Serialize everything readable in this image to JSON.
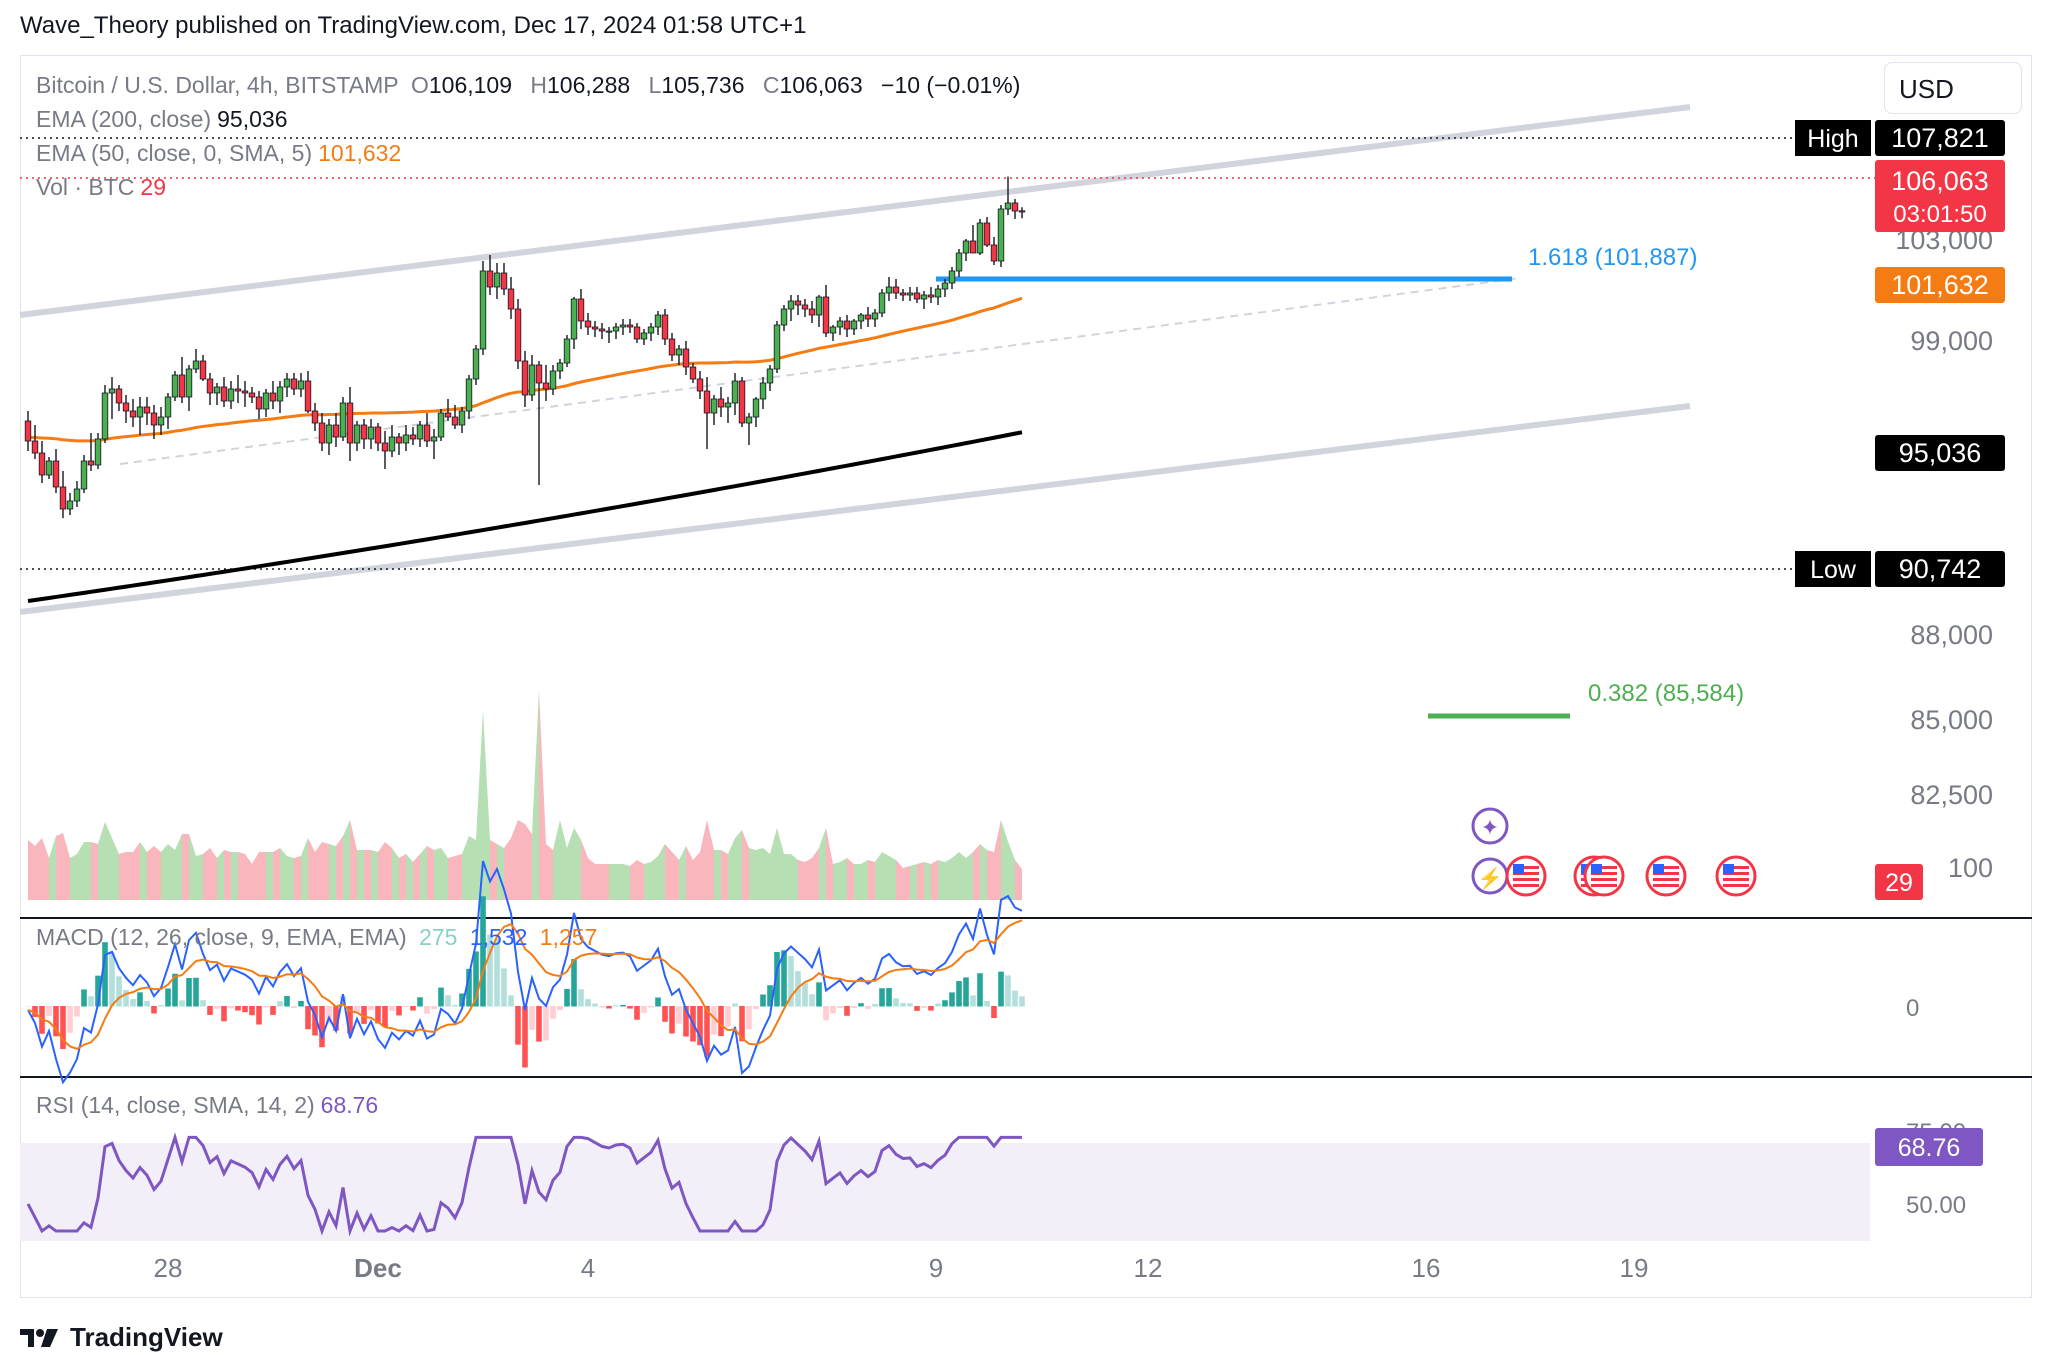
{
  "header": {
    "text": "Wave_Theory published on TradingView.com, Dec 17, 2024 01:58 UTC+1"
  },
  "currency": "USD",
  "legend": {
    "symbol": "Bitcoin / U.S. Dollar, 4h, BITSTAMP",
    "o_label": "O",
    "o": "106,109",
    "h_label": "H",
    "h": "106,288",
    "l_label": "L",
    "l": "105,736",
    "c_label": "C",
    "c": "106,063",
    "change": "−10 (−0.01%)",
    "ema200": "EMA (200, close)",
    "ema200_val": "95,036",
    "ema50": "EMA (50, close, 0, SMA, 5)",
    "ema50_val": "101,632",
    "vol": "Vol · BTC",
    "vol_val": "29",
    "macd": "MACD (12, 26, close, 9, EMA, EMA)",
    "macd_hist": "275",
    "macd_line": "1,532",
    "macd_signal": "1,257",
    "rsi": "RSI (14, close, SMA, 14, 2)",
    "rsi_val": "68.76"
  },
  "footer": {
    "brand": "TradingView"
  },
  "chart_data": {
    "type": "candlestick",
    "interval": "4h",
    "y_ticks": [
      "103,000",
      "99,000",
      "88,000",
      "85,000",
      "82,500",
      "100"
    ],
    "x_ticks": [
      "28",
      "Dec",
      "4",
      "9",
      "12",
      "16",
      "19"
    ],
    "price_markers": [
      {
        "label": "High",
        "value": "107,821",
        "color": "#000000"
      },
      {
        "label": "",
        "value": "106,063",
        "sub": "03:01:50",
        "color": "#f23645"
      },
      {
        "label": "",
        "value": "101,632",
        "color": "#f57c12"
      },
      {
        "label": "",
        "value": "95,036",
        "color": "#000000"
      },
      {
        "label": "Low",
        "value": "90,742",
        "color": "#000000"
      }
    ],
    "annotations": [
      {
        "text": "1.618 (101,887)",
        "color": "#2196f3"
      },
      {
        "text": "0.382 (85,584)",
        "color": "#4caf50"
      }
    ],
    "volume_marker": "29",
    "macd_axis": [
      "0"
    ],
    "rsi_axis": [
      "75.00",
      "50.00"
    ],
    "rsi_marker": "68.76",
    "candles_ohlc": [
      [
        95600,
        96100,
        94100,
        94600
      ],
      [
        94600,
        95400,
        93700,
        94000
      ],
      [
        94000,
        94600,
        92500,
        92900
      ],
      [
        92900,
        93800,
        92700,
        93600
      ],
      [
        93600,
        94200,
        92000,
        92300
      ],
      [
        92300,
        93100,
        90742,
        91200
      ],
      [
        91200,
        92000,
        90900,
        91600
      ],
      [
        91600,
        92600,
        91300,
        92200
      ],
      [
        92200,
        93900,
        92000,
        93600
      ],
      [
        93600,
        95000,
        93100,
        93400
      ],
      [
        93400,
        95000,
        93200,
        94700
      ],
      [
        94700,
        97400,
        94500,
        97000
      ],
      [
        97000,
        97800,
        95700,
        97200
      ],
      [
        97200,
        97400,
        96100,
        96500
      ],
      [
        96500,
        96900,
        95500,
        96100
      ],
      [
        96100,
        96700,
        95300,
        95800
      ],
      [
        95800,
        96800,
        94900,
        96300
      ],
      [
        96300,
        96800,
        95400,
        96000
      ],
      [
        96000,
        96400,
        94700,
        95400
      ],
      [
        95400,
        96300,
        94900,
        95800
      ],
      [
        95800,
        97000,
        95200,
        96800
      ],
      [
        96800,
        98100,
        96600,
        97900
      ],
      [
        97900,
        98800,
        96500,
        96800
      ],
      [
        96800,
        98400,
        96100,
        98200
      ],
      [
        98200,
        99200,
        98000,
        98600
      ],
      [
        98600,
        98900,
        97600,
        97700
      ],
      [
        97700,
        98000,
        96400,
        97000
      ],
      [
        97000,
        97500,
        96400,
        97300
      ],
      [
        97300,
        97800,
        96300,
        96600
      ],
      [
        96600,
        97600,
        96200,
        97200
      ],
      [
        97200,
        97900,
        96500,
        97100
      ],
      [
        97100,
        97600,
        96300,
        97000
      ],
      [
        97000,
        97300,
        96500,
        96800
      ],
      [
        96800,
        97100,
        95700,
        96200
      ],
      [
        96200,
        97200,
        95800,
        97000
      ],
      [
        97000,
        97600,
        96200,
        96600
      ],
      [
        96600,
        97600,
        96000,
        97300
      ],
      [
        97300,
        98000,
        96800,
        97700
      ],
      [
        97700,
        98000,
        96900,
        97200
      ],
      [
        97200,
        98000,
        96800,
        97600
      ],
      [
        97600,
        98100,
        96000,
        96100
      ],
      [
        96100,
        96500,
        95100,
        95500
      ],
      [
        95500,
        96000,
        94100,
        94500
      ],
      [
        94500,
        95700,
        93900,
        95400
      ],
      [
        95400,
        96000,
        94300,
        94800
      ],
      [
        94800,
        96800,
        94600,
        96500
      ],
      [
        96500,
        97300,
        93600,
        94500
      ],
      [
        94500,
        95600,
        94100,
        95400
      ],
      [
        95400,
        95700,
        94200,
        94700
      ],
      [
        94700,
        95700,
        94200,
        95300
      ],
      [
        95300,
        95500,
        94100,
        94500
      ],
      [
        94500,
        95100,
        93200,
        94100
      ],
      [
        94100,
        95400,
        93800,
        94800
      ],
      [
        94800,
        95000,
        93900,
        94500
      ],
      [
        94500,
        95400,
        94100,
        94900
      ],
      [
        94900,
        95300,
        94400,
        94700
      ],
      [
        94700,
        95600,
        94300,
        95400
      ],
      [
        95400,
        96000,
        94300,
        94600
      ],
      [
        94600,
        95200,
        93700,
        94800
      ],
      [
        94800,
        96200,
        94600,
        96000
      ],
      [
        96000,
        96700,
        95600,
        95800
      ],
      [
        95800,
        96400,
        95200,
        95400
      ],
      [
        95400,
        96300,
        95000,
        96100
      ],
      [
        96100,
        97900,
        95700,
        97700
      ],
      [
        97700,
        99400,
        97400,
        99200
      ],
      [
        99200,
        103600,
        98900,
        103100
      ],
      [
        103100,
        103900,
        101900,
        102300
      ],
      [
        102300,
        103500,
        101700,
        103000
      ],
      [
        103000,
        103500,
        101900,
        102200
      ],
      [
        102200,
        102800,
        100700,
        101200
      ],
      [
        101200,
        101700,
        98200,
        98600
      ],
      [
        98600,
        99100,
        96300,
        96900
      ],
      [
        96900,
        98900,
        96600,
        98400
      ],
      [
        98400,
        98600,
        92400,
        97500
      ],
      [
        97500,
        98400,
        96600,
        97200
      ],
      [
        97200,
        98400,
        96900,
        98100
      ],
      [
        98100,
        98700,
        97700,
        98500
      ],
      [
        98500,
        99900,
        98300,
        99700
      ],
      [
        99700,
        101800,
        99200,
        101700
      ],
      [
        101700,
        102200,
        100200,
        100600
      ],
      [
        100600,
        101000,
        99900,
        100300
      ],
      [
        100300,
        100600,
        99800,
        100200
      ],
      [
        100200,
        100500,
        99700,
        100100
      ],
      [
        100100,
        100300,
        99500,
        100100
      ],
      [
        100100,
        100500,
        99700,
        100300
      ],
      [
        100300,
        100700,
        99900,
        100400
      ],
      [
        100400,
        100700,
        100000,
        100300
      ],
      [
        100300,
        100500,
        99500,
        99700
      ],
      [
        99700,
        100200,
        99400,
        100000
      ],
      [
        100000,
        100500,
        99600,
        100300
      ],
      [
        100300,
        101100,
        99900,
        100900
      ],
      [
        100900,
        101200,
        99400,
        99700
      ],
      [
        99700,
        100000,
        98600,
        98900
      ],
      [
        98900,
        99400,
        98400,
        99200
      ],
      [
        99200,
        99600,
        97900,
        98300
      ],
      [
        98300,
        98500,
        97500,
        97700
      ],
      [
        97700,
        98100,
        96700,
        97100
      ],
      [
        97100,
        97800,
        94200,
        96000
      ],
      [
        96000,
        96900,
        95400,
        96700
      ],
      [
        96700,
        97300,
        95800,
        96300
      ],
      [
        96300,
        96800,
        95500,
        96500
      ],
      [
        96500,
        98000,
        95900,
        97600
      ],
      [
        97600,
        97800,
        95300,
        95500
      ],
      [
        95500,
        96000,
        94400,
        95800
      ],
      [
        95800,
        96800,
        95300,
        96700
      ],
      [
        96700,
        97800,
        96200,
        97500
      ],
      [
        97500,
        98400,
        97100,
        98200
      ],
      [
        98200,
        100600,
        98000,
        100400
      ],
      [
        100400,
        101400,
        100100,
        101200
      ],
      [
        101200,
        101900,
        100600,
        101600
      ],
      [
        101600,
        101900,
        100900,
        101400
      ],
      [
        101400,
        101700,
        100800,
        101200
      ],
      [
        101200,
        101600,
        100500,
        100900
      ],
      [
        100900,
        101900,
        100300,
        101800
      ],
      [
        101800,
        102400,
        99800,
        100000
      ],
      [
        100000,
        100400,
        99600,
        100300
      ],
      [
        100300,
        100800,
        99900,
        100600
      ],
      [
        100600,
        100900,
        99800,
        100200
      ],
      [
        100200,
        100700,
        99900,
        100600
      ],
      [
        100600,
        101000,
        100200,
        100900
      ],
      [
        100900,
        101300,
        100300,
        100700
      ],
      [
        100700,
        101200,
        100300,
        101000
      ],
      [
        101000,
        102200,
        100800,
        102000
      ],
      [
        102000,
        102800,
        101600,
        102300
      ],
      [
        102300,
        102700,
        101700,
        102000
      ],
      [
        102000,
        102200,
        101600,
        101900
      ],
      [
        101900,
        102300,
        101600,
        102000
      ],
      [
        102000,
        102300,
        101500,
        101700
      ],
      [
        101700,
        102100,
        101200,
        101900
      ],
      [
        101900,
        102300,
        101500,
        101800
      ],
      [
        101800,
        102400,
        101400,
        102200
      ],
      [
        102200,
        102700,
        101800,
        102500
      ],
      [
        102500,
        103300,
        102200,
        103100
      ],
      [
        103100,
        104200,
        102800,
        104000
      ],
      [
        104000,
        104700,
        103600,
        104600
      ],
      [
        104600,
        105400,
        104000,
        104000
      ],
      [
        104000,
        105700,
        103900,
        105500
      ],
      [
        105500,
        105800,
        104300,
        104400
      ],
      [
        104400,
        104800,
        103400,
        103600
      ],
      [
        103600,
        106400,
        103300,
        106200
      ],
      [
        106200,
        107821,
        105900,
        106500
      ],
      [
        106500,
        106700,
        105700,
        106100
      ],
      [
        106109,
        106288,
        105736,
        106063
      ]
    ]
  }
}
